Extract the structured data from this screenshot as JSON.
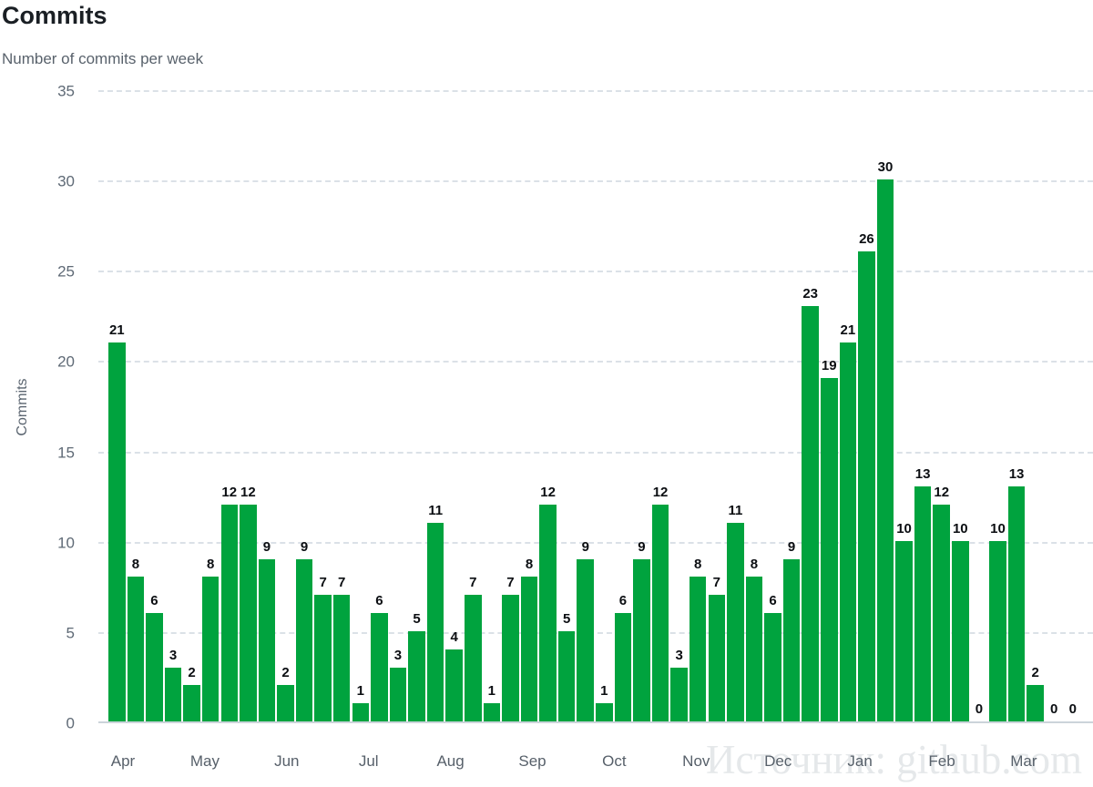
{
  "header": {
    "title": "Commits",
    "subtitle": "Number of commits per week"
  },
  "watermark": "Источник: github.com",
  "chart_data": {
    "type": "bar",
    "title": "Commits",
    "subtitle": "Number of commits per week",
    "ylabel": "Commits",
    "xlabel": "",
    "ylim": [
      0,
      35
    ],
    "yticks": [
      0,
      5,
      10,
      15,
      20,
      25,
      30,
      35
    ],
    "grid": "horizontal-dashed",
    "legend": "none",
    "bar_color": "#00A33E",
    "value_labels_shown": true,
    "categories_note": "52 weekly bars, Apr through Mar",
    "months": [
      "Apr",
      "May",
      "Jun",
      "Jul",
      "Aug",
      "Sep",
      "Oct",
      "Nov",
      "Dec",
      "Jan",
      "Feb",
      "Mar"
    ],
    "values": [
      21,
      8,
      6,
      3,
      2,
      8,
      12,
      12,
      9,
      2,
      9,
      7,
      7,
      1,
      6,
      3,
      5,
      11,
      4,
      7,
      1,
      7,
      8,
      12,
      5,
      9,
      1,
      6,
      9,
      12,
      3,
      8,
      7,
      11,
      8,
      6,
      9,
      23,
      19,
      21,
      26,
      30,
      10,
      13,
      12,
      10,
      0,
      10,
      13,
      2,
      0,
      0
    ]
  }
}
